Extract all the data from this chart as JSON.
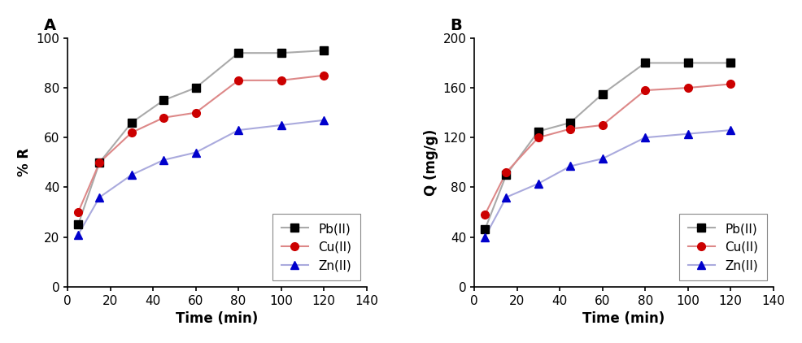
{
  "time": [
    5,
    15,
    30,
    45,
    60,
    80,
    100,
    120
  ],
  "A_Pb": [
    25,
    50,
    66,
    75,
    80,
    94,
    94,
    95
  ],
  "A_Cu": [
    30,
    50,
    62,
    68,
    70,
    83,
    83,
    85
  ],
  "A_Zn": [
    21,
    36,
    45,
    51,
    54,
    63,
    65,
    67
  ],
  "B_Pb": [
    46,
    90,
    125,
    132,
    155,
    180,
    180,
    180
  ],
  "B_Cu": [
    58,
    92,
    120,
    127,
    130,
    158,
    160,
    163
  ],
  "B_Zn": [
    40,
    72,
    83,
    97,
    103,
    120,
    123,
    126
  ],
  "A_ylabel": "% R",
  "B_ylabel": "Q (mg/g)",
  "xlabel": "Time (min)",
  "A_ylim": [
    0,
    100
  ],
  "B_ylim": [
    0,
    200
  ],
  "xlim": [
    0,
    140
  ],
  "A_yticks": [
    0,
    20,
    40,
    60,
    80,
    100
  ],
  "B_yticks": [
    0,
    40,
    80,
    120,
    160,
    200
  ],
  "xticks": [
    0,
    20,
    40,
    60,
    80,
    100,
    120,
    140
  ],
  "Pb_marker_color": "#000000",
  "Cu_marker_color": "#cc0000",
  "Zn_marker_color": "#0000cc",
  "Pb_line_color": "#aaaaaa",
  "Cu_line_color": "#dd8888",
  "Zn_line_color": "#aaaadd",
  "label_A": "A",
  "label_B": "B",
  "legend_Pb": "Pb(II)",
  "legend_Cu": "Cu(II)",
  "legend_Zn": "Zn(II)"
}
